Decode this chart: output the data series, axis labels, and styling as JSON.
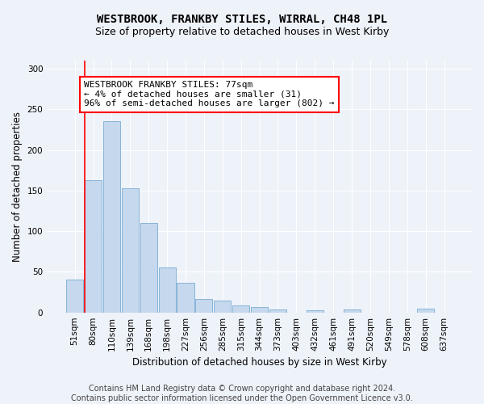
{
  "title": "WESTBROOK, FRANKBY STILES, WIRRAL, CH48 1PL",
  "subtitle": "Size of property relative to detached houses in West Kirby",
  "xlabel": "Distribution of detached houses by size in West Kirby",
  "ylabel": "Number of detached properties",
  "bar_color": "#c5d8ed",
  "bar_edge_color": "#7aadd4",
  "categories": [
    "51sqm",
    "80sqm",
    "110sqm",
    "139sqm",
    "168sqm",
    "198sqm",
    "227sqm",
    "256sqm",
    "285sqm",
    "315sqm",
    "344sqm",
    "373sqm",
    "403sqm",
    "432sqm",
    "461sqm",
    "491sqm",
    "520sqm",
    "549sqm",
    "578sqm",
    "608sqm",
    "637sqm"
  ],
  "values": [
    40,
    163,
    235,
    153,
    110,
    55,
    36,
    17,
    15,
    9,
    7,
    4,
    0,
    3,
    0,
    4,
    0,
    0,
    0,
    5,
    0
  ],
  "ylim": [
    0,
    310
  ],
  "yticks": [
    0,
    50,
    100,
    150,
    200,
    250,
    300
  ],
  "annotation_line1": "WESTBROOK FRANKBY STILES: 77sqm",
  "annotation_line2": "← 4% of detached houses are smaller (31)",
  "annotation_line3": "96% of semi-detached houses are larger (802) →",
  "red_line_index": 0.52,
  "footer_line1": "Contains HM Land Registry data © Crown copyright and database right 2024.",
  "footer_line2": "Contains public sector information licensed under the Open Government Licence v3.0.",
  "background_color": "#eef2f9",
  "grid_color": "#ffffff",
  "title_fontsize": 10,
  "subtitle_fontsize": 9,
  "axis_label_fontsize": 8.5,
  "tick_fontsize": 7.5,
  "annotation_fontsize": 8,
  "footer_fontsize": 7
}
